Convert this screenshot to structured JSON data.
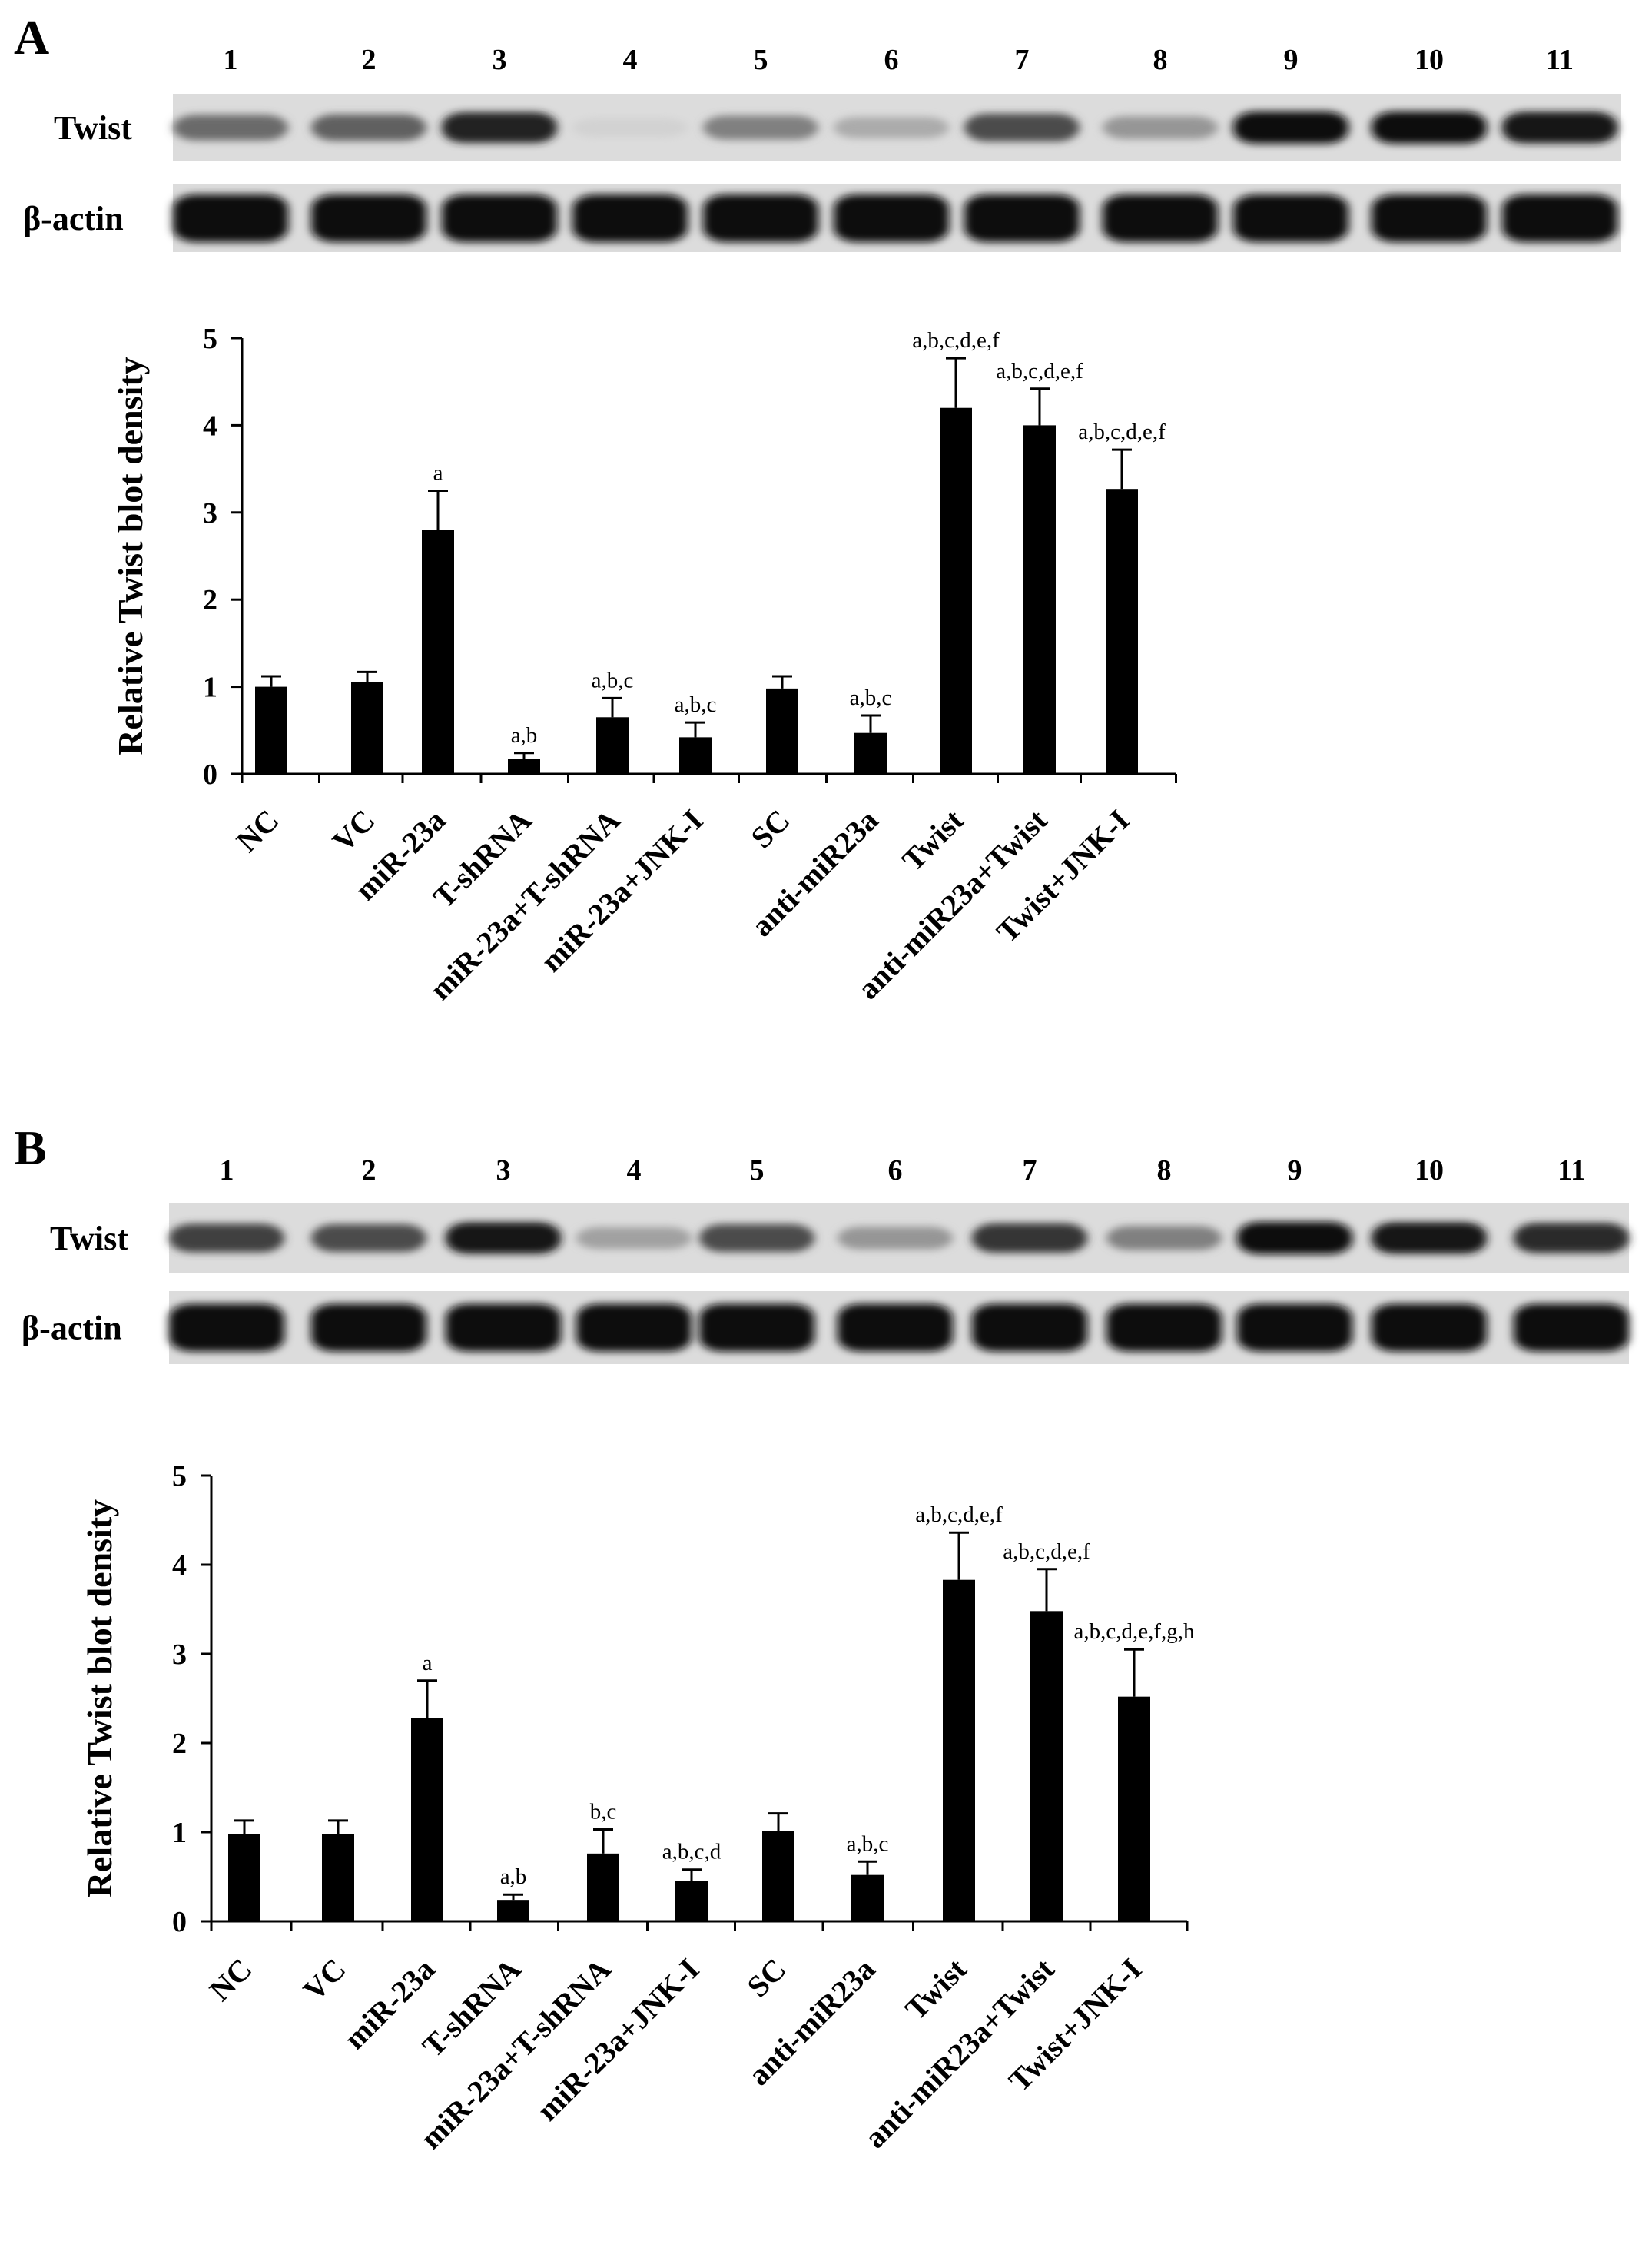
{
  "chart_data": [
    {
      "type": "bar",
      "panel_label": "A",
      "blot": {
        "lane_numbers": [
          "1",
          "2",
          "3",
          "4",
          "5",
          "6",
          "7",
          "8",
          "9",
          "10",
          "11"
        ],
        "rows": [
          {
            "label": "Twist",
            "intensities": [
              0.55,
              0.6,
              0.9,
              0.07,
              0.45,
              0.25,
              0.7,
              0.35,
              1.0,
              1.0,
              0.95
            ]
          },
          {
            "label": "β-actin",
            "intensities": [
              1,
              1,
              1,
              1,
              1,
              1,
              1,
              1,
              1,
              1,
              1
            ]
          }
        ]
      },
      "categories": [
        "NC",
        "VC",
        "miR-23a",
        "T-shRNA",
        "miR-23a+T-shRNA",
        "miR-23a+JNK-I",
        "SC",
        "anti-miR23a",
        "Twist",
        "anti-miR23a+Twist",
        "Twist+JNK-I"
      ],
      "values": [
        1.0,
        1.05,
        2.8,
        0.17,
        0.65,
        0.42,
        0.98,
        0.47,
        4.2,
        4.0,
        3.27
      ],
      "errors": [
        0.12,
        0.12,
        0.45,
        0.07,
        0.22,
        0.17,
        0.14,
        0.2,
        0.57,
        0.42,
        0.45
      ],
      "annotations": [
        "",
        "",
        "a",
        "a,b",
        "a,b,c",
        "a,b,c",
        "",
        "a,b,c",
        "a,b,c,d,e,f",
        "a,b,c,d,e,f",
        "a,b,c,d,e,f"
      ],
      "ylabel": "Relative Twist blot density",
      "ylim": [
        0,
        5
      ],
      "yticks": [
        "0",
        "1",
        "2",
        "3",
        "4",
        "5"
      ],
      "grid": false
    },
    {
      "type": "bar",
      "panel_label": "B",
      "blot": {
        "lane_numbers": [
          "1",
          "2",
          "3",
          "4",
          "5",
          "6",
          "7",
          "8",
          "9",
          "10",
          "11"
        ],
        "rows": [
          {
            "label": "Twist",
            "intensities": [
              0.75,
              0.7,
              0.95,
              0.3,
              0.7,
              0.35,
              0.8,
              0.45,
              1.0,
              0.95,
              0.85
            ]
          },
          {
            "label": "β-actin",
            "intensities": [
              1,
              1,
              1,
              1,
              1,
              1,
              1,
              1,
              1,
              1,
              1
            ]
          }
        ]
      },
      "categories": [
        "NC",
        "VC",
        "miR-23a",
        "T-shRNA",
        "miR-23a+T-shRNA",
        "miR-23a+JNK-I",
        "SC",
        "anti-miR23a",
        "Twist",
        "anti-miR23a+Twist",
        "Twist+JNK-I"
      ],
      "values": [
        0.98,
        0.98,
        2.28,
        0.24,
        0.76,
        0.45,
        1.01,
        0.52,
        3.83,
        3.48,
        2.52
      ],
      "errors": [
        0.15,
        0.15,
        0.42,
        0.06,
        0.27,
        0.13,
        0.2,
        0.15,
        0.53,
        0.47,
        0.53
      ],
      "annotations": [
        "",
        "",
        "a",
        "a,b",
        "b,c",
        "a,b,c,d",
        "",
        "a,b,c",
        "a,b,c,d,e,f",
        "a,b,c,d,e,f",
        "a,b,c,d,e,f,g,h"
      ],
      "ylabel": "Relative Twist blot density",
      "ylim": [
        0,
        5
      ],
      "yticks": [
        "0",
        "1",
        "2",
        "3",
        "4",
        "5"
      ],
      "grid": false
    }
  ]
}
